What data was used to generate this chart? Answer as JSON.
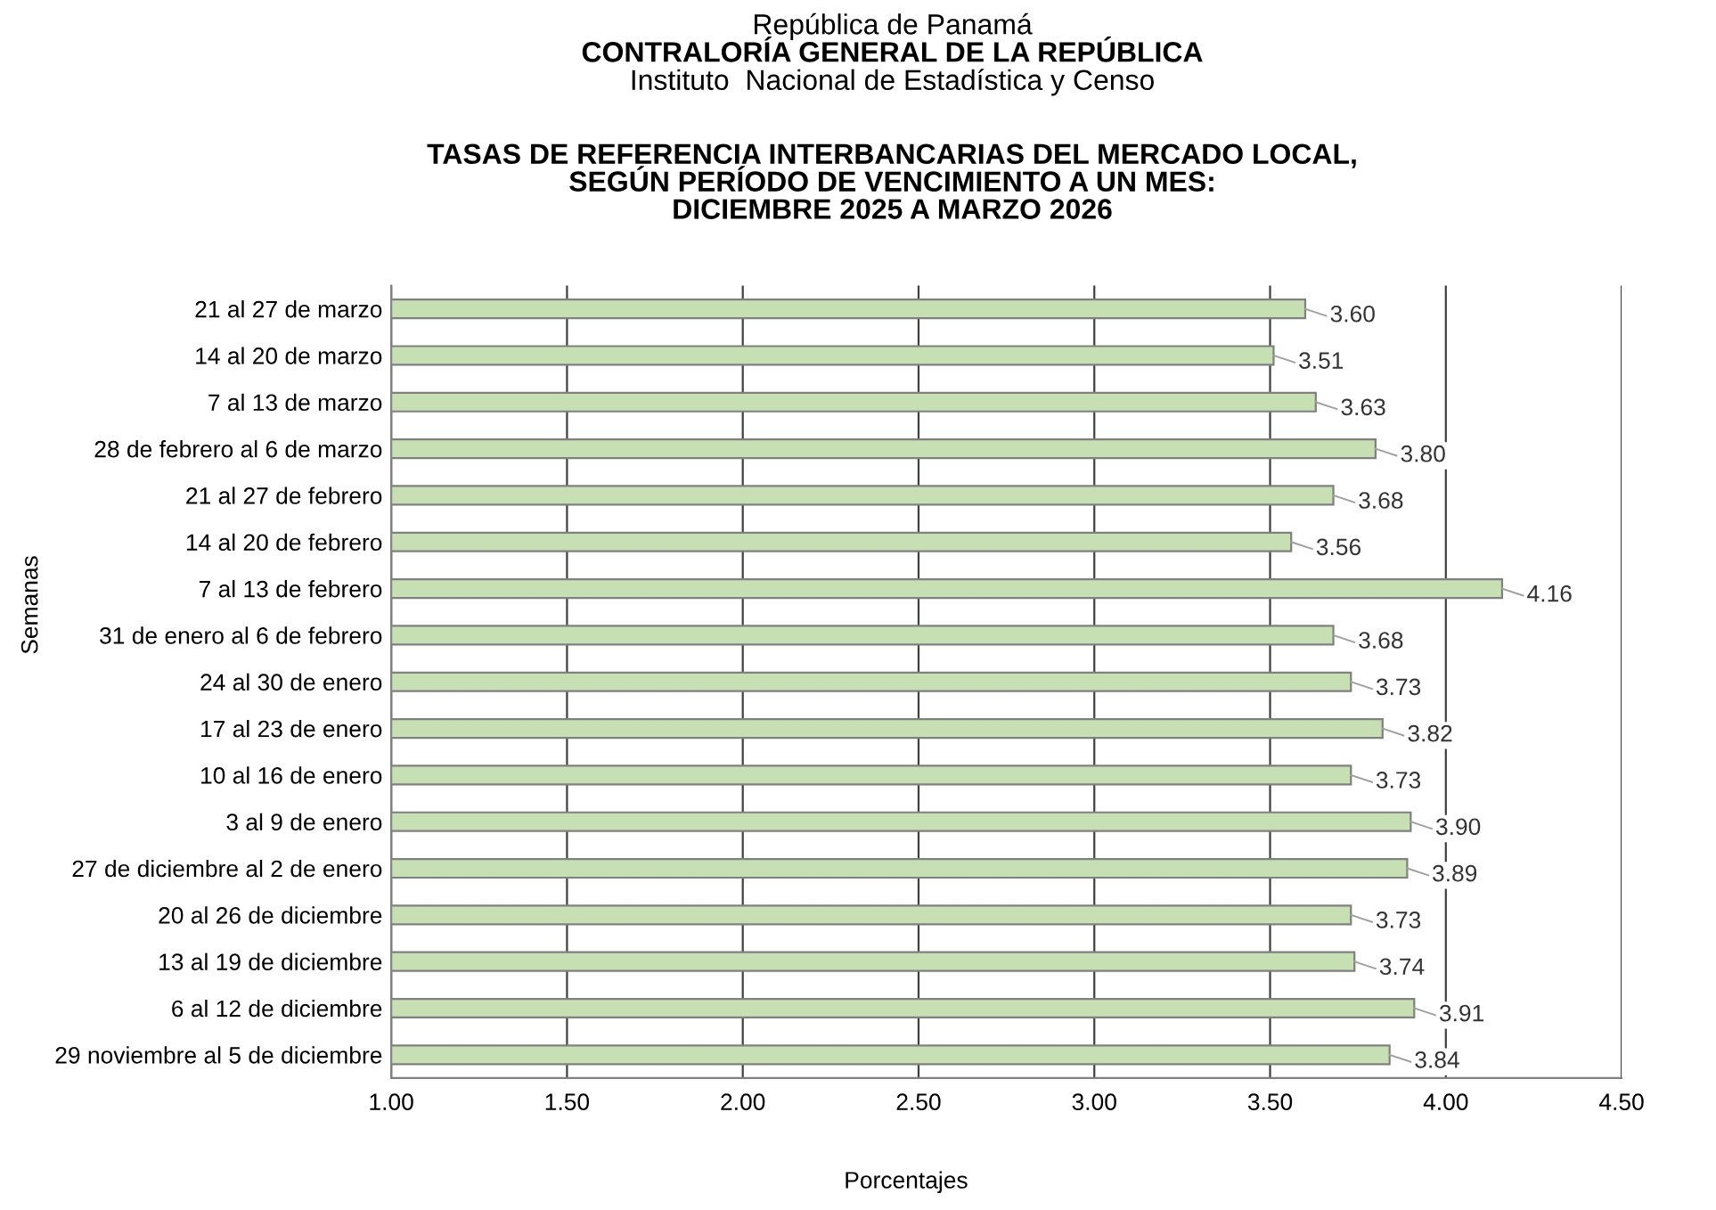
{
  "chart_data": {
    "type": "bar",
    "orientation": "horizontal",
    "annotations": [
      "República de Panamá",
      "CONTRALORÍA GENERAL DE LA REPÚBLICA",
      "Instituto  Nacional de Estadística y Censo"
    ],
    "title": "TASAS DE REFERENCIA INTERBANCARIAS DEL MERCADO LOCAL,\nSEGÚN PERÍODO DE VENCIMIENTO A UN MES:\nDICIEMBRE 2025 A MARZO 2026",
    "ylabel": "Semanas",
    "xlabel": "Porcentajes",
    "categories": [
      "21 al 27 de marzo",
      "14 al 20 de marzo",
      "7 al 13 de marzo",
      "28 de febrero al 6 de marzo",
      "21 al 27 de febrero",
      "14 al 20 de febrero",
      "7 al 13 de febrero",
      "31 de enero al 6 de febrero",
      "24 al 30 de enero",
      "17 al 23 de enero",
      "10 al 16 de enero",
      "3 al 9 de enero",
      "27 de diciembre al 2 de enero",
      "20 al 26 de diciembre",
      "13 al 19 de diciembre",
      "6 al 12 de diciembre",
      "29 noviembre al 5 de diciembre"
    ],
    "values": [
      3.6,
      3.51,
      3.63,
      3.8,
      3.68,
      3.56,
      4.16,
      3.68,
      3.73,
      3.82,
      3.73,
      3.9,
      3.89,
      3.73,
      3.74,
      3.91,
      3.84
    ],
    "value_labels": [
      "3.60",
      "3.51",
      "3.63",
      "3.80",
      "3.68",
      "3.56",
      "4.16",
      "3.68",
      "3.73",
      "3.82",
      "3.73",
      "3.90",
      "3.89",
      "3.73",
      "3.74",
      "3.91",
      "3.84"
    ],
    "color": "#c6e0b4",
    "xlim": [
      1.0,
      4.5
    ],
    "xticks": [
      {
        "value": 1.0,
        "label": "1.00"
      },
      {
        "value": 1.5,
        "label": "1.50"
      },
      {
        "value": 2.0,
        "label": "2.00"
      },
      {
        "value": 2.5,
        "label": "2.50"
      },
      {
        "value": 3.0,
        "label": "3.00"
      },
      {
        "value": 3.5,
        "label": "3.50"
      },
      {
        "value": 4.0,
        "label": "4.00"
      },
      {
        "value": 4.5,
        "label": "4.50"
      }
    ],
    "grid": "x",
    "legend": false
  }
}
